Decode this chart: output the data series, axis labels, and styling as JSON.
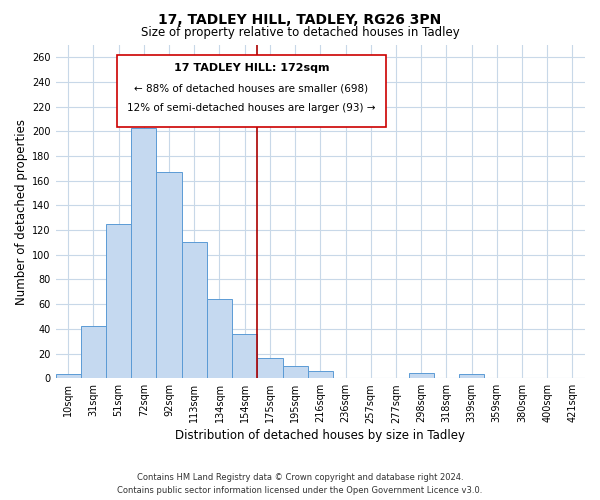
{
  "title": "17, TADLEY HILL, TADLEY, RG26 3PN",
  "subtitle": "Size of property relative to detached houses in Tadley",
  "xlabel": "Distribution of detached houses by size in Tadley",
  "ylabel": "Number of detached properties",
  "categories": [
    "10sqm",
    "31sqm",
    "51sqm",
    "72sqm",
    "92sqm",
    "113sqm",
    "134sqm",
    "154sqm",
    "175sqm",
    "195sqm",
    "216sqm",
    "236sqm",
    "257sqm",
    "277sqm",
    "298sqm",
    "318sqm",
    "339sqm",
    "359sqm",
    "380sqm",
    "400sqm",
    "421sqm"
  ],
  "values": [
    3,
    42,
    125,
    203,
    167,
    110,
    64,
    36,
    16,
    10,
    6,
    0,
    0,
    0,
    4,
    0,
    3,
    0,
    0,
    0,
    0
  ],
  "bar_color": "#c5d9f0",
  "bar_edge_color": "#5b9bd5",
  "ref_line_index": 8,
  "annotation_title": "17 TADLEY HILL: 172sqm",
  "annotation_line1": "← 88% of detached houses are smaller (698)",
  "annotation_line2": "12% of semi-detached houses are larger (93) →",
  "annotation_box_color": "#ffffff",
  "annotation_box_edge": "#cc0000",
  "ylim": [
    0,
    270
  ],
  "yticks": [
    0,
    20,
    40,
    60,
    80,
    100,
    120,
    140,
    160,
    180,
    200,
    220,
    240,
    260
  ],
  "footer_line1": "Contains HM Land Registry data © Crown copyright and database right 2024.",
  "footer_line2": "Contains public sector information licensed under the Open Government Licence v3.0.",
  "background_color": "#ffffff",
  "grid_color": "#c8d8e8",
  "ref_line_color": "#aa0000",
  "title_fontsize": 10,
  "subtitle_fontsize": 8.5,
  "xlabel_fontsize": 8.5,
  "ylabel_fontsize": 8.5,
  "tick_fontsize": 7,
  "ann_title_fontsize": 8,
  "ann_text_fontsize": 7.5
}
